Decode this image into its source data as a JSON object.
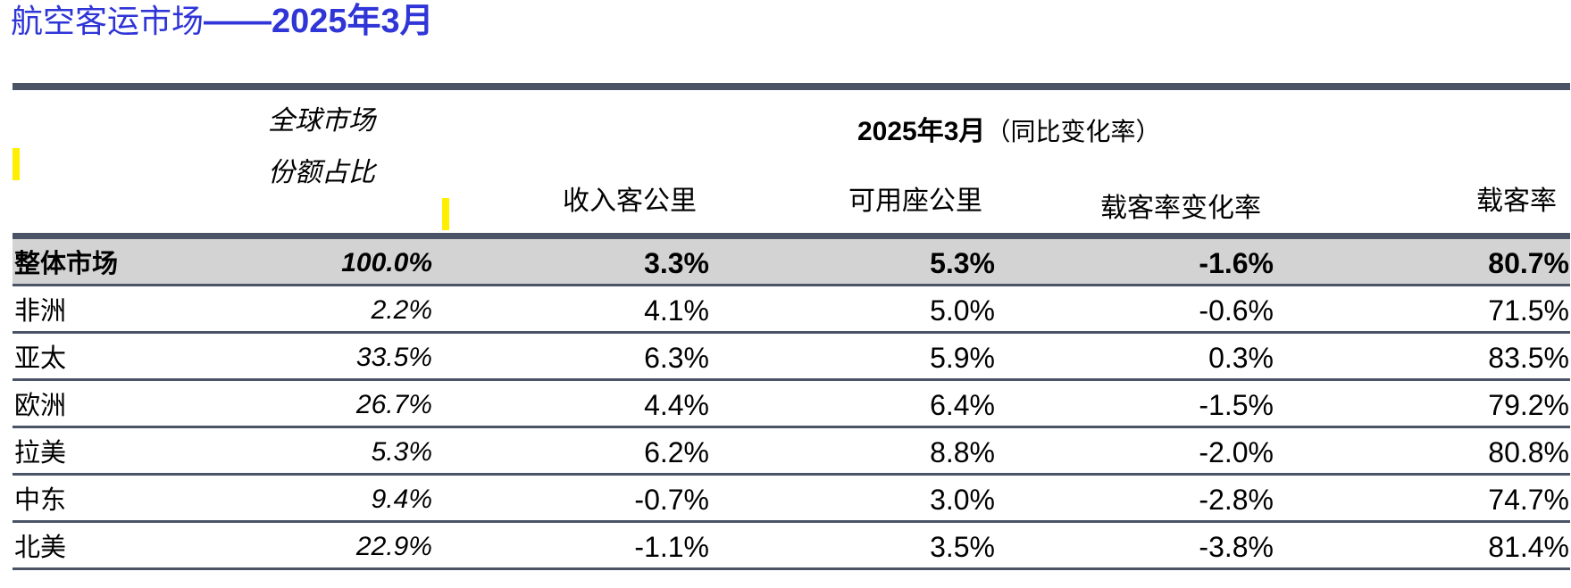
{
  "title": {
    "text_cn": "航空客运市场",
    "dash": "——",
    "date": "2025年3月"
  },
  "header": {
    "share_line1": "全球市场",
    "share_line2": "份额占比",
    "group_date": "2025年3月",
    "group_label": "（同比变化率）",
    "col_rpk": "收入客公里",
    "col_ask": "可用座公里",
    "col_lf_change": "载客率变化率",
    "col_lf": "载客率"
  },
  "colors": {
    "title": "#2f35d6",
    "bar": "#4a5466",
    "total_bg": "#d3d3d3",
    "highlight": "#ffee00"
  },
  "rows": [
    {
      "region": "整体市场",
      "share": "100.0%",
      "rpk": "3.3%",
      "ask": "5.3%",
      "lf_change": "-1.6%",
      "lf": "80.7%"
    },
    {
      "region": "非洲",
      "share": "2.2%",
      "rpk": "4.1%",
      "ask": "5.0%",
      "lf_change": "-0.6%",
      "lf": "71.5%"
    },
    {
      "region": "亚太",
      "share": "33.5%",
      "rpk": "6.3%",
      "ask": "5.9%",
      "lf_change": "0.3%",
      "lf": "83.5%"
    },
    {
      "region": "欧洲",
      "share": "26.7%",
      "rpk": "4.4%",
      "ask": "6.4%",
      "lf_change": "-1.5%",
      "lf": "79.2%"
    },
    {
      "region": "拉美",
      "share": "5.3%",
      "rpk": "6.2%",
      "ask": "8.8%",
      "lf_change": "-2.0%",
      "lf": "80.8%"
    },
    {
      "region": "中东",
      "share": "9.4%",
      "rpk": "-0.7%",
      "ask": "3.0%",
      "lf_change": "-2.8%",
      "lf": "74.7%"
    },
    {
      "region": "北美",
      "share": "22.9%",
      "rpk": "-1.1%",
      "ask": "3.5%",
      "lf_change": "-3.8%",
      "lf": "81.4%"
    }
  ]
}
